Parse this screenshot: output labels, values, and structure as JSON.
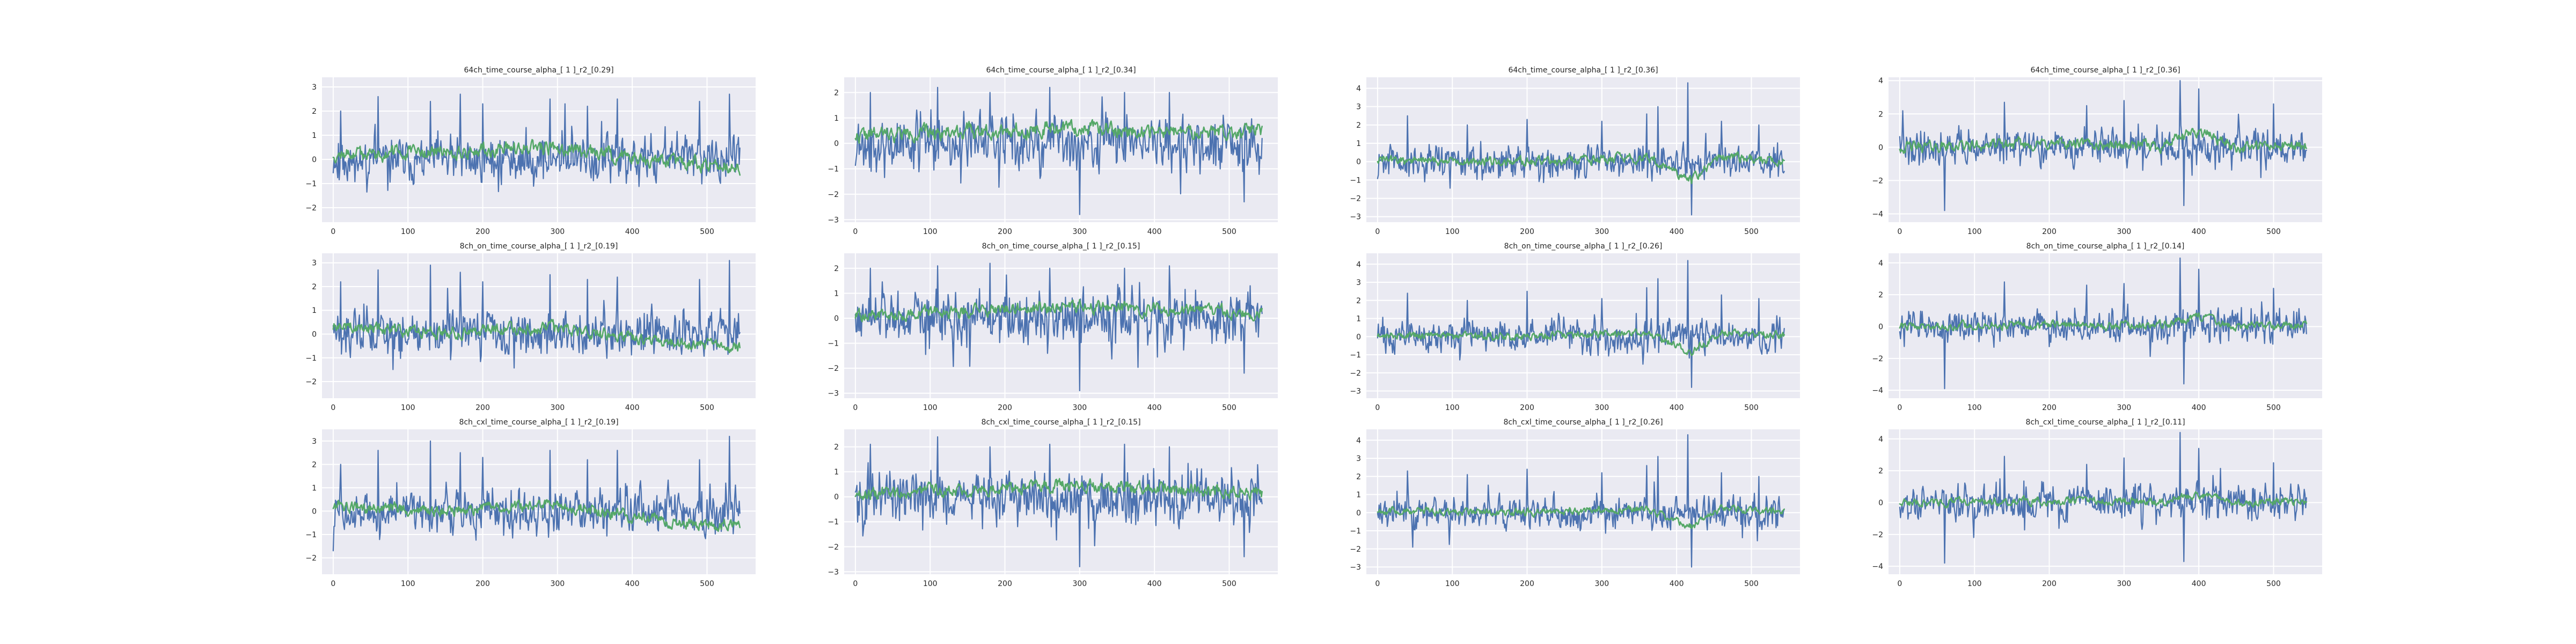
{
  "figure": {
    "colors": {
      "background": "#EAEAF2",
      "grid": "#FFFFFF",
      "series_1": "#4C72B0",
      "series_2": "#55A868",
      "text": "#262626"
    }
  },
  "chart_data": [
    {
      "type": "line",
      "title": "64ch_time_course_alpha_[ 1 ]_r2_[0.29]",
      "xlim": [
        -15,
        565
      ],
      "ylim": [
        -2.6,
        3.4
      ],
      "xticks": [
        0,
        100,
        200,
        300,
        400,
        500
      ],
      "yticks": [
        -2,
        -1,
        0,
        1,
        2,
        3
      ],
      "n_points": 545,
      "series_1": {
        "amplitude": 0.8,
        "spikes": [
          [
            10,
            2.0
          ],
          [
            60,
            2.6
          ],
          [
            130,
            2.4
          ],
          [
            170,
            2.7
          ],
          [
            200,
            2.3
          ],
          [
            290,
            2.5
          ],
          [
            310,
            2.3
          ],
          [
            340,
            2.2
          ],
          [
            380,
            2.5
          ],
          [
            490,
            2.4
          ],
          [
            530,
            2.7
          ]
        ],
        "seed": 11
      },
      "series_2": {
        "amplitude": 0.35,
        "trend": [
          [
            0,
            0.2
          ],
          [
            150,
            0.3
          ],
          [
            300,
            0.5
          ],
          [
            450,
            -0.1
          ],
          [
            545,
            -0.3
          ]
        ],
        "seed": 12
      },
      "grid": true
    },
    {
      "type": "line",
      "title": "64ch_time_course_alpha_[ 1 ]_r2_[0.34]",
      "xlim": [
        -15,
        565
      ],
      "ylim": [
        -3.1,
        2.6
      ],
      "xticks": [
        0,
        100,
        200,
        300,
        400,
        500
      ],
      "yticks": [
        -3,
        -2,
        -1,
        0,
        1,
        2
      ],
      "n_points": 545,
      "series_1": {
        "amplitude": 0.9,
        "spikes": [
          [
            20,
            2.0
          ],
          [
            110,
            2.2
          ],
          [
            180,
            2.0
          ],
          [
            260,
            2.2
          ],
          [
            300,
            -2.8
          ],
          [
            360,
            2.0
          ],
          [
            420,
            2.0
          ],
          [
            520,
            -2.3
          ]
        ],
        "seed": 21
      },
      "series_2": {
        "amplitude": 0.35,
        "trend": [
          [
            0,
            0.3
          ],
          [
            150,
            0.5
          ],
          [
            300,
            0.6
          ],
          [
            450,
            0.4
          ],
          [
            545,
            0.5
          ]
        ],
        "seed": 22
      },
      "grid": true
    },
    {
      "type": "line",
      "title": "64ch_time_course_alpha_[ 1 ]_r2_[0.36]",
      "xlim": [
        -15,
        565
      ],
      "ylim": [
        -3.3,
        4.6
      ],
      "xticks": [
        0,
        100,
        200,
        300,
        400,
        500
      ],
      "yticks": [
        -3,
        -2,
        -1,
        0,
        1,
        2,
        3,
        4
      ],
      "n_points": 545,
      "series_1": {
        "amplitude": 0.75,
        "spikes": [
          [
            40,
            2.5
          ],
          [
            120,
            2.0
          ],
          [
            200,
            2.3
          ],
          [
            300,
            2.2
          ],
          [
            360,
            2.6
          ],
          [
            375,
            3.0
          ],
          [
            415,
            4.3
          ],
          [
            420,
            -2.9
          ],
          [
            460,
            2.2
          ],
          [
            510,
            2.0
          ]
        ],
        "seed": 31
      },
      "series_2": {
        "amplitude": 0.3,
        "trend": [
          [
            0,
            0.1
          ],
          [
            200,
            0.0
          ],
          [
            360,
            0.2
          ],
          [
            420,
            -1.0
          ],
          [
            460,
            0.3
          ],
          [
            545,
            0.0
          ]
        ],
        "seed": 32
      },
      "grid": true
    },
    {
      "type": "line",
      "title": "64ch_time_course_alpha_[ 1 ]_r2_[0.36]",
      "xlim": [
        -15,
        565
      ],
      "ylim": [
        -4.5,
        4.2
      ],
      "xticks": [
        0,
        100,
        200,
        300,
        400,
        500
      ],
      "yticks": [
        -4,
        -2,
        0,
        2,
        4
      ],
      "n_points": 545,
      "series_1": {
        "amplitude": 0.9,
        "spikes": [
          [
            60,
            -3.8
          ],
          [
            140,
            2.7
          ],
          [
            250,
            2.5
          ],
          [
            300,
            2.8
          ],
          [
            375,
            4.0
          ],
          [
            380,
            -3.5
          ],
          [
            400,
            3.5
          ],
          [
            500,
            2.6
          ]
        ],
        "seed": 41
      },
      "series_2": {
        "amplitude": 0.4,
        "trend": [
          [
            0,
            0.0
          ],
          [
            200,
            0.2
          ],
          [
            350,
            0.1
          ],
          [
            400,
            1.0
          ],
          [
            450,
            0.0
          ],
          [
            545,
            0.1
          ]
        ],
        "seed": 42
      },
      "grid": true
    },
    {
      "type": "line",
      "title": "8ch_on_time_course_alpha_[ 1 ]_r2_[0.19]",
      "xlim": [
        -15,
        565
      ],
      "ylim": [
        -2.7,
        3.4
      ],
      "xticks": [
        0,
        100,
        200,
        300,
        400,
        500
      ],
      "yticks": [
        -2,
        -1,
        0,
        1,
        2,
        3
      ],
      "n_points": 545,
      "series_1": {
        "amplitude": 0.8,
        "spikes": [
          [
            10,
            2.2
          ],
          [
            60,
            2.7
          ],
          [
            130,
            2.9
          ],
          [
            170,
            2.6
          ],
          [
            200,
            2.2
          ],
          [
            290,
            2.5
          ],
          [
            340,
            2.3
          ],
          [
            380,
            2.4
          ],
          [
            490,
            2.3
          ],
          [
            530,
            3.1
          ]
        ],
        "seed": 51
      },
      "series_2": {
        "amplitude": 0.3,
        "trend": [
          [
            0,
            0.3
          ],
          [
            150,
            0.1
          ],
          [
            300,
            0.3
          ],
          [
            450,
            -0.4
          ],
          [
            545,
            -0.5
          ]
        ],
        "seed": 52
      },
      "grid": true
    },
    {
      "type": "line",
      "title": "8ch_on_time_course_alpha_[ 1 ]_r2_[0.15]",
      "xlim": [
        -15,
        565
      ],
      "ylim": [
        -3.2,
        2.6
      ],
      "xticks": [
        0,
        100,
        200,
        300,
        400,
        500
      ],
      "yticks": [
        -3,
        -2,
        -1,
        0,
        1,
        2
      ],
      "n_points": 545,
      "series_1": {
        "amplitude": 0.9,
        "spikes": [
          [
            20,
            2.0
          ],
          [
            110,
            2.1
          ],
          [
            180,
            2.2
          ],
          [
            260,
            2.0
          ],
          [
            300,
            -2.9
          ],
          [
            360,
            2.0
          ],
          [
            420,
            2.1
          ],
          [
            520,
            -2.2
          ]
        ],
        "seed": 61
      },
      "series_2": {
        "amplitude": 0.3,
        "trend": [
          [
            0,
            0.1
          ],
          [
            150,
            0.3
          ],
          [
            300,
            0.5
          ],
          [
            450,
            0.3
          ],
          [
            545,
            0.2
          ]
        ],
        "seed": 62
      },
      "grid": true
    },
    {
      "type": "line",
      "title": "8ch_on_time_course_alpha_[ 1 ]_r2_[0.26]",
      "xlim": [
        -15,
        565
      ],
      "ylim": [
        -3.4,
        4.6
      ],
      "xticks": [
        0,
        100,
        200,
        300,
        400,
        500
      ],
      "yticks": [
        -3,
        -2,
        -1,
        0,
        1,
        2,
        3,
        4
      ],
      "n_points": 545,
      "series_1": {
        "amplitude": 0.75,
        "spikes": [
          [
            40,
            2.4
          ],
          [
            120,
            2.0
          ],
          [
            200,
            2.5
          ],
          [
            300,
            2.1
          ],
          [
            360,
            2.7
          ],
          [
            375,
            3.2
          ],
          [
            415,
            4.2
          ],
          [
            420,
            -2.8
          ],
          [
            460,
            2.3
          ],
          [
            510,
            2.1
          ]
        ],
        "seed": 71
      },
      "series_2": {
        "amplitude": 0.25,
        "trend": [
          [
            0,
            0.1
          ],
          [
            200,
            0.0
          ],
          [
            360,
            0.2
          ],
          [
            420,
            -0.8
          ],
          [
            460,
            0.2
          ],
          [
            545,
            0.1
          ]
        ],
        "seed": 72
      },
      "grid": true
    },
    {
      "type": "line",
      "title": "8ch_on_time_course_alpha_[ 1 ]_r2_[0.14]",
      "xlim": [
        -15,
        565
      ],
      "ylim": [
        -4.5,
        4.6
      ],
      "xticks": [
        0,
        100,
        200,
        300,
        400,
        500
      ],
      "yticks": [
        -4,
        -2,
        0,
        2,
        4
      ],
      "n_points": 545,
      "series_1": {
        "amplitude": 0.9,
        "spikes": [
          [
            60,
            -3.9
          ],
          [
            140,
            2.8
          ],
          [
            250,
            2.6
          ],
          [
            300,
            2.7
          ],
          [
            375,
            4.3
          ],
          [
            380,
            -3.6
          ],
          [
            400,
            3.6
          ],
          [
            500,
            2.4
          ]
        ],
        "seed": 81
      },
      "series_2": {
        "amplitude": 0.3,
        "trend": [
          [
            0,
            0.0
          ],
          [
            200,
            0.1
          ],
          [
            350,
            0.1
          ],
          [
            400,
            0.6
          ],
          [
            450,
            0.0
          ],
          [
            545,
            0.1
          ]
        ],
        "seed": 82
      },
      "grid": true
    },
    {
      "type": "line",
      "title": "8ch_cxl_time_course_alpha_[ 1 ]_r2_[0.19]",
      "xlim": [
        -15,
        565
      ],
      "ylim": [
        -2.7,
        3.5
      ],
      "xticks": [
        0,
        100,
        200,
        300,
        400,
        500
      ],
      "yticks": [
        -2,
        -1,
        0,
        1,
        2,
        3
      ],
      "n_points": 545,
      "series_1": {
        "amplitude": 0.8,
        "spikes": [
          [
            10,
            2.0
          ],
          [
            60,
            2.6
          ],
          [
            130,
            3.0
          ],
          [
            170,
            2.5
          ],
          [
            200,
            2.3
          ],
          [
            290,
            2.6
          ],
          [
            340,
            2.2
          ],
          [
            380,
            2.6
          ],
          [
            490,
            2.2
          ],
          [
            530,
            3.2
          ]
        ],
        "seed": 91
      },
      "series_2": {
        "amplitude": 0.3,
        "trend": [
          [
            0,
            0.2
          ],
          [
            150,
            0.0
          ],
          [
            300,
            0.3
          ],
          [
            450,
            -0.5
          ],
          [
            545,
            -0.6
          ]
        ],
        "seed": 92
      },
      "grid": true
    },
    {
      "type": "line",
      "title": "8ch_cxl_time_course_alpha_[ 1 ]_r2_[0.15]",
      "xlim": [
        -15,
        565
      ],
      "ylim": [
        -3.1,
        2.7
      ],
      "xticks": [
        0,
        100,
        200,
        300,
        400,
        500
      ],
      "yticks": [
        -3,
        -2,
        -1,
        0,
        1,
        2
      ],
      "n_points": 545,
      "series_1": {
        "amplitude": 0.9,
        "spikes": [
          [
            20,
            2.1
          ],
          [
            110,
            2.4
          ],
          [
            180,
            2.0
          ],
          [
            260,
            2.1
          ],
          [
            300,
            -2.8
          ],
          [
            360,
            2.1
          ],
          [
            420,
            2.0
          ],
          [
            520,
            -2.4
          ]
        ],
        "seed": 101
      },
      "series_2": {
        "amplitude": 0.3,
        "trend": [
          [
            0,
            0.1
          ],
          [
            150,
            0.3
          ],
          [
            300,
            0.5
          ],
          [
            450,
            0.3
          ],
          [
            545,
            0.1
          ]
        ],
        "seed": 102
      },
      "grid": true
    },
    {
      "type": "line",
      "title": "8ch_cxl_time_course_alpha_[ 1 ]_r2_[0.26]",
      "xlim": [
        -15,
        565
      ],
      "ylim": [
        -3.4,
        4.6
      ],
      "xticks": [
        0,
        100,
        200,
        300,
        400,
        500
      ],
      "yticks": [
        -3,
        -2,
        -1,
        0,
        1,
        2,
        3,
        4
      ],
      "n_points": 545,
      "series_1": {
        "amplitude": 0.75,
        "spikes": [
          [
            40,
            2.3
          ],
          [
            120,
            2.1
          ],
          [
            200,
            2.4
          ],
          [
            300,
            2.2
          ],
          [
            360,
            2.6
          ],
          [
            375,
            3.1
          ],
          [
            415,
            4.3
          ],
          [
            420,
            -3.0
          ],
          [
            460,
            2.2
          ],
          [
            510,
            2.0
          ]
        ],
        "seed": 111
      },
      "series_2": {
        "amplitude": 0.25,
        "trend": [
          [
            0,
            0.1
          ],
          [
            200,
            0.0
          ],
          [
            360,
            0.2
          ],
          [
            420,
            -0.8
          ],
          [
            460,
            0.2
          ],
          [
            545,
            0.1
          ]
        ],
        "seed": 112
      },
      "grid": true
    },
    {
      "type": "line",
      "title": "8ch_cxl_time_course_alpha_[ 1 ]_r2_[0.11]",
      "xlim": [
        -15,
        565
      ],
      "ylim": [
        -4.5,
        4.6
      ],
      "xticks": [
        0,
        100,
        200,
        300,
        400,
        500
      ],
      "yticks": [
        -4,
        -2,
        0,
        2,
        4
      ],
      "n_points": 545,
      "series_1": {
        "amplitude": 0.9,
        "spikes": [
          [
            60,
            -3.8
          ],
          [
            140,
            2.9
          ],
          [
            250,
            2.4
          ],
          [
            300,
            2.8
          ],
          [
            375,
            4.4
          ],
          [
            380,
            -3.7
          ],
          [
            400,
            3.4
          ],
          [
            500,
            2.5
          ]
        ],
        "seed": 121
      },
      "series_2": {
        "amplitude": 0.3,
        "trend": [
          [
            0,
            0.0
          ],
          [
            200,
            0.1
          ],
          [
            350,
            0.1
          ],
          [
            400,
            0.5
          ],
          [
            450,
            0.0
          ],
          [
            545,
            0.1
          ]
        ],
        "seed": 122
      },
      "grid": true
    }
  ]
}
